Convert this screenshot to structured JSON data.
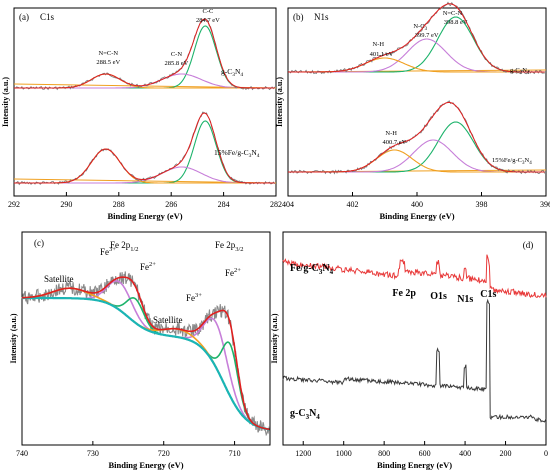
{
  "chart_data": [
    {
      "panel": "(a)",
      "type": "line",
      "title": "C1s",
      "xlabel": "Binding Energy (eV)",
      "ylabel": "Intensity (a.u.)",
      "xlim": [
        292,
        282
      ],
      "xticks": [
        292,
        290,
        288,
        286,
        284,
        282
      ],
      "samples": [
        {
          "name": "g-C3N4",
          "label_main": "g-C",
          "label_sub1": "3",
          "label_mid": "N",
          "label_sub2": "4",
          "peaks": [
            {
              "name": "C-C",
              "x": 284.7,
              "label": "C-C",
              "value_label": "284.7 eV",
              "color": "#1db36b"
            },
            {
              "name": "C-N",
              "x": 285.8,
              "label": "C-N",
              "value_label": "285.8 eV",
              "color": "#c77fd9"
            },
            {
              "name": "N=C-N",
              "x": 288.5,
              "label": "N=C-N",
              "value_label": "288.5 eV",
              "color": "#f0a020"
            }
          ]
        },
        {
          "name": "15%Fe/g-C3N4",
          "label_main": "15%Fe/g-C",
          "label_sub1": "3",
          "label_mid": "N",
          "label_sub2": "4",
          "peaks": [
            {
              "name": "C-C",
              "x": 284.7,
              "color": "#1db36b"
            },
            {
              "name": "C-N",
              "x": 285.8,
              "color": "#c77fd9"
            },
            {
              "name": "N=C-N",
              "x": 288.5,
              "color": "#f0a020"
            }
          ]
        }
      ]
    },
    {
      "panel": "(b)",
      "type": "line",
      "title": "N1s",
      "xlabel": "Binding Energy (eV)",
      "ylabel": "Intensity (a.u.)",
      "xlim": [
        404,
        396
      ],
      "xticks": [
        404,
        402,
        400,
        398,
        396
      ],
      "samples": [
        {
          "name": "g-C3N4",
          "label_main": "g-C",
          "label_sub1": "3",
          "label_mid": "N",
          "label_sub2": "4",
          "peaks": [
            {
              "name": "N=C-N",
              "x": 398.8,
              "label": "N=C-N",
              "value_label": "398.8 eV",
              "color": "#1db36b"
            },
            {
              "name": "N-C3",
              "x": 399.7,
              "label": "N-C",
              "label_sub": "3",
              "value_label": "399.7 eV",
              "color": "#c77fd9"
            },
            {
              "name": "N-H",
              "x": 401.1,
              "label": "N-H",
              "value_label": "401.1 eV",
              "color": "#f0a020"
            }
          ]
        },
        {
          "name": "15%Fe/g-C3N4",
          "label_main": "15%Fe/g-C",
          "label_sub1": "3",
          "label_mid": "N",
          "label_sub2": "4",
          "peaks": [
            {
              "name": "N=C-N",
              "x": 398.8,
              "color": "#1db36b"
            },
            {
              "name": "N-C3",
              "x": 399.5,
              "color": "#c77fd9"
            },
            {
              "name": "N-H",
              "x": 400.7,
              "label": "N-H",
              "value_label": "400.7 eV",
              "color": "#f0a020"
            }
          ]
        }
      ]
    },
    {
      "panel": "(c)",
      "type": "line",
      "title": "",
      "xlabel": "Binding Energy (eV)",
      "ylabel": "Intensity (a.u.)",
      "xlim": [
        740,
        705
      ],
      "xticks": [
        740,
        730,
        720,
        710
      ],
      "annotations": [
        {
          "text": "Satellite",
          "x": 733
        },
        {
          "text": "Fe",
          "sup": "3+",
          "x": 727.5
        },
        {
          "text": "Fe 2p",
          "sub": "1/2",
          "x": 725
        },
        {
          "text": "Fe",
          "sup": "2+",
          "x": 723
        },
        {
          "text": "Satellite",
          "x": 718
        },
        {
          "text": "Fe",
          "sup": "3+",
          "x": 713
        },
        {
          "text": "Fe 2p",
          "sub": "3/2",
          "x": 711
        },
        {
          "text": "Fe",
          "sup": "2+",
          "x": 708
        }
      ],
      "components": [
        {
          "name": "Fe3+ 2p3/2",
          "x": 712.5,
          "color": "#c77fd9"
        },
        {
          "name": "Fe2+ 2p3/2",
          "x": 710.6,
          "color": "#1db36b"
        },
        {
          "name": "Fe3+ 2p1/2",
          "x": 726.0,
          "color": "#c77fd9"
        },
        {
          "name": "Fe2+ 2p1/2",
          "x": 724.0,
          "color": "#1db36b"
        },
        {
          "name": "Satellite 1",
          "x": 733.0,
          "color": "#f0a020"
        },
        {
          "name": "Satellite 2",
          "x": 718.0,
          "color": "#f0a020"
        }
      ],
      "colors": {
        "raw": "#8a8a8a",
        "fit": "#e02020",
        "background": "#1ab5b5"
      }
    },
    {
      "panel": "(d)",
      "type": "line",
      "title": "",
      "xlabel": "Binding Energy (eV)",
      "ylabel": "Intensity (a.u.)",
      "xlim": [
        1300,
        0
      ],
      "xticks": [
        1200,
        1000,
        800,
        600,
        400,
        200,
        0
      ],
      "annotations": [
        {
          "text": "Fe 2p",
          "x": 711
        },
        {
          "text": "O1s",
          "x": 531
        },
        {
          "text": "N1s",
          "x": 399
        },
        {
          "text": "C1s",
          "x": 285
        }
      ],
      "series": [
        {
          "name": "Fe/g-C3N4",
          "label_main": "Fe/g-C",
          "label_sub1": "3",
          "label_mid": "N",
          "label_sub2": "4",
          "color": "#e83a3a"
        },
        {
          "name": "g-C3N4",
          "label_main": "g-C",
          "label_sub1": "3",
          "label_mid": "N",
          "label_sub2": "4",
          "color": "#3a3a3a"
        }
      ]
    }
  ]
}
